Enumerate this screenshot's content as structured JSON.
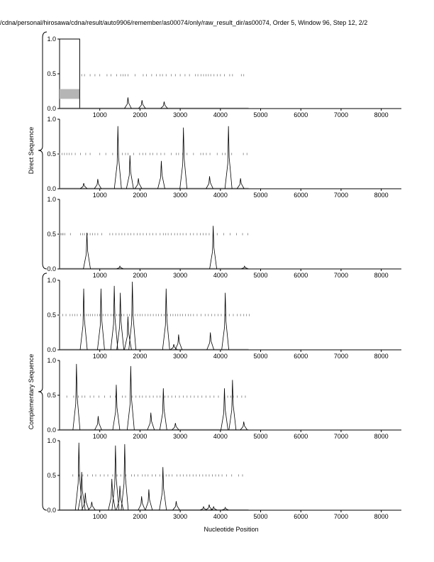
{
  "page": {
    "title": "/cdna/personal/hirosawa/cdna/result/auto9906/remember/as00074/only/raw_result_dir/as00074, Order 5, Window 96, Step 12, 2/2"
  },
  "groups": [
    {
      "label": "Direct Sequence",
      "panels": [
        0,
        1,
        2
      ]
    },
    {
      "label": "Complementary Sequence",
      "panels": [
        3,
        4,
        5
      ]
    }
  ],
  "chart_data": {
    "type": "line",
    "xlabel": "Nucleotide Position",
    "xlim": [
      0,
      8500
    ],
    "ylim": [
      0,
      1.0
    ],
    "x_ticks": [
      1000,
      2000,
      3000,
      4000,
      5000,
      6000,
      7000,
      8000
    ],
    "x_tick_labels": [
      "1000",
      "2000",
      "3000",
      "4000",
      "5000",
      "6000",
      "7000",
      "8000"
    ],
    "y_ticks": [
      0,
      0.5,
      1.0
    ],
    "y_tick_labels": [
      "0.0",
      "0.5",
      "1.0"
    ],
    "panels": [
      {
        "group": "Direct Sequence",
        "peaks": [
          [
            1700,
            0.16
          ],
          [
            2050,
            0.12
          ],
          [
            2600,
            0.1
          ]
        ],
        "markers": [
          550,
          620,
          760,
          880,
          1000,
          1180,
          1280,
          1420,
          1520,
          1580,
          1630,
          1700,
          1880,
          2080,
          2160,
          2290,
          2410,
          2500,
          2560,
          2650,
          2780,
          2880,
          3000,
          3120,
          3230,
          3380,
          3440,
          3520,
          3580,
          3640,
          3700,
          3760,
          3840,
          3920,
          4000,
          4100,
          4230,
          4300,
          4520,
          4580
        ],
        "marker_y": 0.48,
        "highlight": {
          "x0": 0,
          "x1": 500,
          "y": 1.0
        },
        "gray_box": {
          "x0": 0,
          "x1": 500,
          "y0": 0.14,
          "y1": 0.28
        }
      },
      {
        "group": "Direct Sequence",
        "peaks": [
          [
            600,
            0.08
          ],
          [
            950,
            0.14
          ],
          [
            1450,
            0.9
          ],
          [
            1750,
            0.48
          ],
          [
            1960,
            0.15
          ],
          [
            2530,
            0.4
          ],
          [
            3080,
            0.88
          ],
          [
            3730,
            0.18
          ],
          [
            4200,
            0.9
          ],
          [
            4500,
            0.15
          ]
        ],
        "markers": [
          0,
          60,
          120,
          180,
          240,
          300,
          390,
          520,
          650,
          760,
          1000,
          1150,
          1320,
          1440,
          1560,
          1640,
          1700,
          1840,
          1990,
          2070,
          2140,
          2250,
          2320,
          2420,
          2520,
          2610,
          2780,
          2900,
          2960,
          3060,
          3170,
          3330,
          3510,
          3570,
          3650,
          3740,
          3920,
          4050,
          4120,
          4280,
          4570,
          4660
        ],
        "marker_y": 0.5
      },
      {
        "group": "Direct Sequence",
        "peaks": [
          [
            680,
            0.52
          ],
          [
            1500,
            0.04
          ],
          [
            3820,
            0.62
          ],
          [
            4600,
            0.04
          ]
        ],
        "markers": [
          0,
          30,
          60,
          90,
          130,
          270,
          520,
          570,
          620,
          700,
          760,
          820,
          880,
          950,
          1050,
          1250,
          1320,
          1400,
          1480,
          1550,
          1620,
          1700,
          1770,
          1850,
          1930,
          2000,
          2080,
          2160,
          2240,
          2320,
          2400,
          2500,
          2580,
          2640,
          2700,
          2780,
          2860,
          2930,
          3000,
          3070,
          3150,
          3250,
          3330,
          3420,
          3500,
          3570,
          3640,
          3720,
          3820,
          3920,
          4080,
          4240,
          4400,
          4550,
          4680
        ],
        "marker_y": 0.5
      },
      {
        "group": "Complementary Sequence",
        "peaks": [
          [
            600,
            0.88
          ],
          [
            1030,
            0.88
          ],
          [
            1360,
            0.92
          ],
          [
            1510,
            0.82
          ],
          [
            1700,
            0.48
          ],
          [
            1810,
            0.98
          ],
          [
            2650,
            0.88
          ],
          [
            2840,
            0.08
          ],
          [
            2960,
            0.22
          ],
          [
            3750,
            0.25
          ],
          [
            4120,
            0.82
          ]
        ],
        "markers": [
          0,
          80,
          160,
          260,
          320,
          380,
          440,
          520,
          610,
          670,
          720,
          770,
          820,
          880,
          940,
          1000,
          1080,
          1140,
          1200,
          1280,
          1330,
          1420,
          1480,
          1540,
          1600,
          1680,
          1740,
          1800,
          1880,
          1940,
          2000,
          2060,
          2130,
          2200,
          2260,
          2330,
          2400,
          2460,
          2530,
          2600,
          2680,
          2760,
          2820,
          2880,
          2940,
          3000,
          3060,
          3130,
          3200,
          3260,
          3330,
          3420,
          3520,
          3620,
          3700,
          3780,
          3860,
          3940,
          4020,
          4120,
          4220,
          4320,
          4420,
          4500,
          4580,
          4650,
          4720
        ],
        "marker_y": 0.5
      },
      {
        "group": "Complementary Sequence",
        "peaks": [
          [
            420,
            0.95
          ],
          [
            960,
            0.2
          ],
          [
            1410,
            0.65
          ],
          [
            1770,
            0.92
          ],
          [
            2270,
            0.25
          ],
          [
            2580,
            0.6
          ],
          [
            2880,
            0.1
          ],
          [
            4100,
            0.6
          ],
          [
            4300,
            0.72
          ],
          [
            4580,
            0.12
          ]
        ],
        "markers": [
          180,
          350,
          470,
          560,
          630,
          760,
          850,
          980,
          1120,
          1260,
          1390,
          1560,
          1640,
          1800,
          1900,
          1990,
          2060,
          2150,
          2240,
          2330,
          2420,
          2500,
          2620,
          2700,
          2790,
          2880,
          2980,
          3080,
          3170,
          3260,
          3350,
          3440,
          3540,
          3640,
          3740,
          3840,
          3950,
          4100,
          4180,
          4260,
          4320,
          4420,
          4530,
          4620
        ],
        "marker_y": 0.48
      },
      {
        "group": "Complementary Sequence",
        "peaks": [
          [
            480,
            0.97
          ],
          [
            550,
            0.55
          ],
          [
            640,
            0.25
          ],
          [
            800,
            0.12
          ],
          [
            1300,
            0.45
          ],
          [
            1390,
            0.93
          ],
          [
            1500,
            0.35
          ],
          [
            1620,
            0.95
          ],
          [
            2040,
            0.2
          ],
          [
            2220,
            0.3
          ],
          [
            2570,
            0.62
          ],
          [
            2900,
            0.13
          ],
          [
            3580,
            0.05
          ],
          [
            3720,
            0.08
          ],
          [
            3830,
            0.05
          ],
          [
            4120,
            0.04
          ]
        ],
        "markers": [
          330,
          480,
          580,
          700,
          820,
          900,
          1010,
          1110,
          1200,
          1320,
          1430,
          1520,
          1650,
          1790,
          1860,
          1950,
          2060,
          2130,
          2200,
          2300,
          2390,
          2490,
          2570,
          2650,
          2720,
          2800,
          2920,
          3000,
          3080,
          3160,
          3240,
          3320,
          3400,
          3480,
          3560,
          3640,
          3720,
          3800,
          3880,
          3960,
          4040,
          4150,
          4280,
          4450,
          4550
        ],
        "marker_y": 0.5
      }
    ]
  }
}
